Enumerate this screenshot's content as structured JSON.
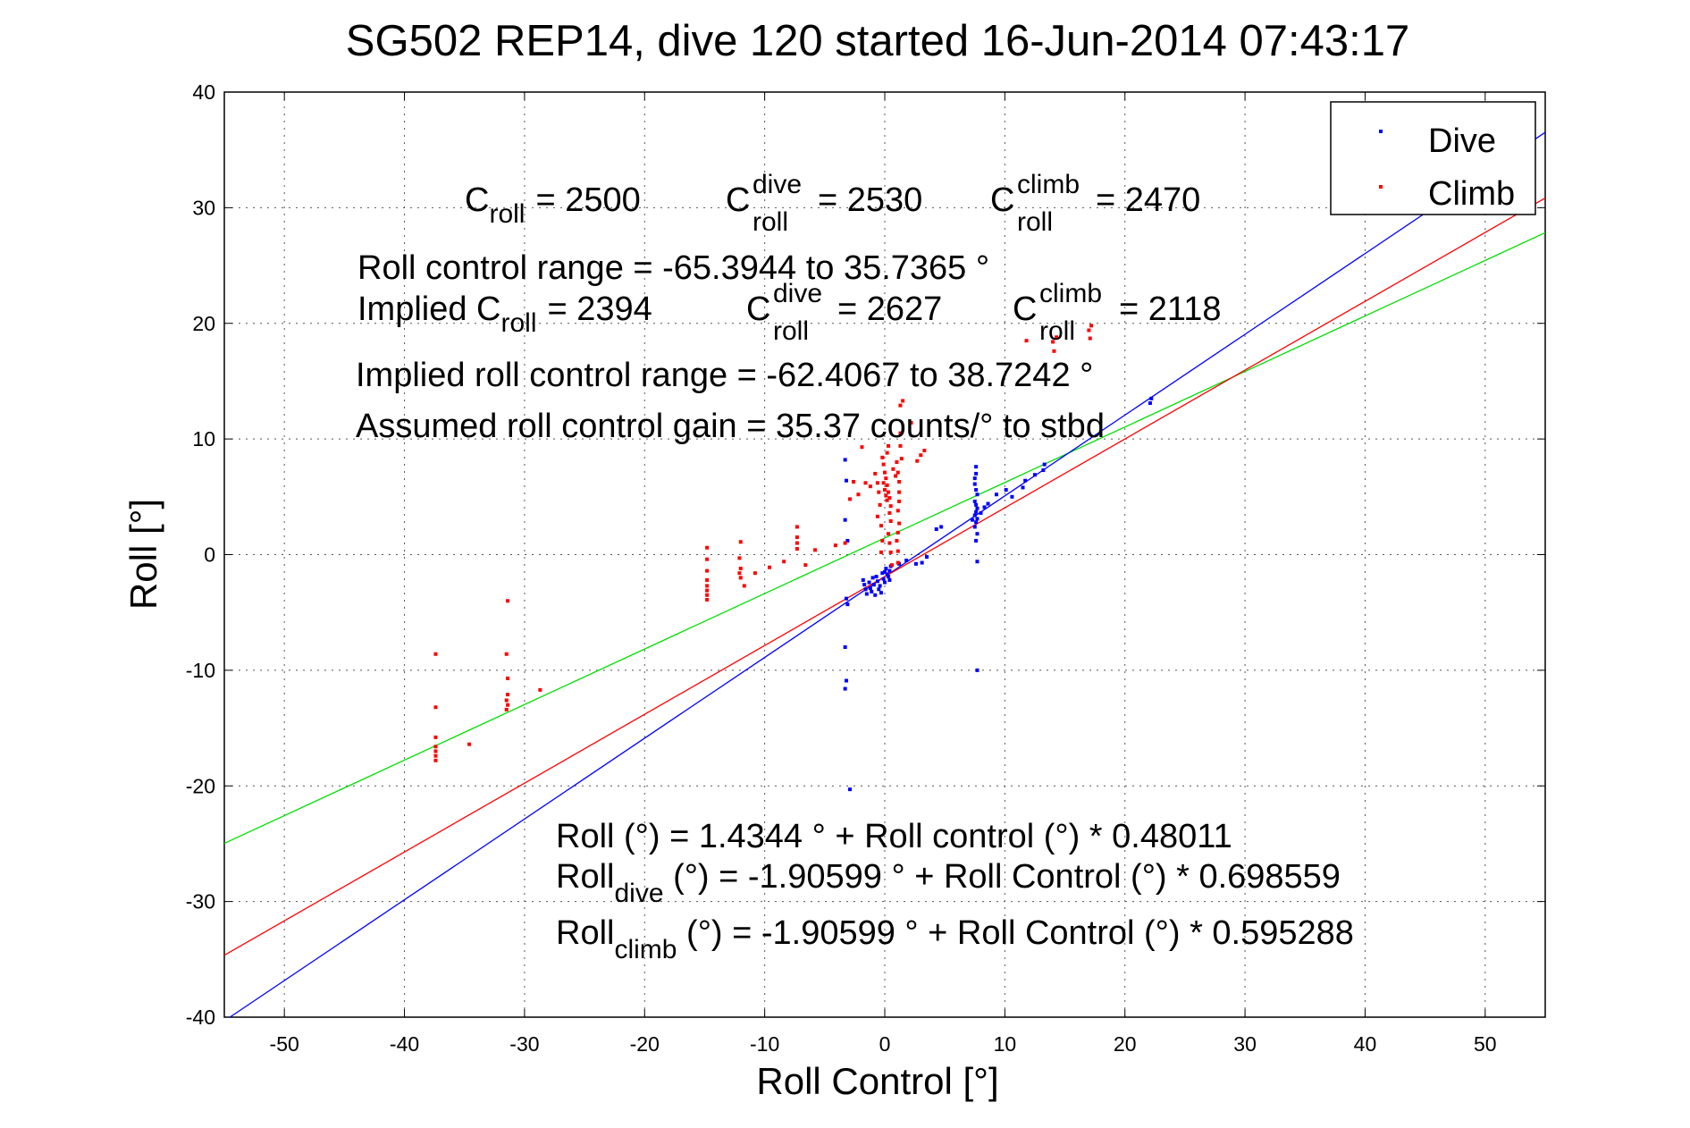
{
  "chart_data": {
    "type": "scatter",
    "title": "SG502 REP14, dive 120 started 16-Jun-2014 07:43:17",
    "xlabel": "Roll Control [°]",
    "ylabel": "Roll [°]",
    "xlim": [
      -55,
      55
    ],
    "ylim": [
      -40,
      40
    ],
    "xticks": [
      -50,
      -40,
      -30,
      -20,
      -10,
      0,
      10,
      20,
      30,
      40,
      50
    ],
    "yticks": [
      -40,
      -30,
      -20,
      -10,
      0,
      10,
      20,
      30,
      40
    ],
    "grid": true,
    "legend_position": "top-right",
    "legend": [
      {
        "label": "Dive",
        "color": "#0000ff"
      },
      {
        "label": "Climb",
        "color": "#ff0000"
      }
    ],
    "colors": {
      "dive": "#0000ff",
      "climb": "#ff0000",
      "overall_fit": "#00dd00"
    },
    "annotations": {
      "c_roll": {
        "label": "C",
        "sub": "roll",
        "value": "= 2500"
      },
      "c_dive": {
        "label": "C",
        "sub": "roll",
        "sup": "dive",
        "value": "= 2530"
      },
      "c_climb": {
        "label": "C",
        "sub": "roll",
        "sup": "climb",
        "value": "= 2470"
      },
      "range": "Roll control range = -65.3944 to 35.7365 °",
      "implied_prefix": "Implied C",
      "implied_sub": "roll",
      "implied_value": "= 2394",
      "implied_dive": {
        "label": "C",
        "sub": "roll",
        "sup": "dive",
        "value": "= 2627"
      },
      "implied_climb": {
        "label": "C",
        "sub": "roll",
        "sup": "climb",
        "value": "= 2118"
      },
      "implied_range": "Implied roll control range = -62.4067 to 38.7242 °",
      "gain": "Assumed roll control gain = 35.37 counts/° to stbd",
      "eq1": "Roll (°) = 1.4344 ° + Roll control (°) * 0.48011",
      "eq2_label": "Roll",
      "eq2_sub": "dive",
      "eq2_rest": " (°) = -1.90599 ° + Roll Control (°) * 0.698559",
      "eq3_label": "Roll",
      "eq3_sub": "climb",
      "eq3_rest": " (°) = -1.90599 ° + Roll Control (°) * 0.595288"
    },
    "fits": [
      {
        "name": "overall",
        "color": "#00dd00",
        "intercept": 1.4344,
        "slope": 0.48011
      },
      {
        "name": "dive",
        "color": "#0000ff",
        "intercept": -1.90599,
        "slope": 0.698559
      },
      {
        "name": "climb",
        "color": "#ff0000",
        "intercept": -1.90599,
        "slope": 0.595288
      }
    ],
    "series": [
      {
        "name": "Dive",
        "color": "#0000ff",
        "points": [
          [
            -3.3,
            8.2
          ],
          [
            -3.2,
            6.4
          ],
          [
            -3.3,
            3.0
          ],
          [
            -3.1,
            1.2
          ],
          [
            -3.2,
            -3.8
          ],
          [
            -3.1,
            -4.3
          ],
          [
            -3.3,
            -8.0
          ],
          [
            -3.2,
            -10.9
          ],
          [
            -3.3,
            -11.6
          ],
          [
            -2.9,
            -20.3
          ],
          [
            -1.8,
            -2.2
          ],
          [
            -1.7,
            -2.6
          ],
          [
            -1.6,
            -3.0
          ],
          [
            -1.5,
            -3.4
          ],
          [
            -1.3,
            -2.4
          ],
          [
            -1.2,
            -2.9
          ],
          [
            -1.1,
            -3.2
          ],
          [
            -1.0,
            -2.0
          ],
          [
            -0.9,
            -2.6
          ],
          [
            -0.8,
            -3.5
          ],
          [
            -0.7,
            -1.9
          ],
          [
            -0.6,
            -2.3
          ],
          [
            -0.5,
            -3.0
          ],
          [
            -0.4,
            -2.7
          ],
          [
            -0.3,
            -3.3
          ],
          [
            -0.2,
            -1.6
          ],
          [
            -0.1,
            -2.1
          ],
          [
            0.0,
            -1.5
          ],
          [
            0.0,
            -2.4
          ],
          [
            0.1,
            -1.2
          ],
          [
            0.2,
            -1.7
          ],
          [
            0.3,
            -1.9
          ],
          [
            0.4,
            -1.4
          ],
          [
            0.5,
            -1.0
          ],
          [
            0.4,
            -2.2
          ],
          [
            1.2,
            -0.8
          ],
          [
            1.8,
            -0.5
          ],
          [
            2.6,
            -0.8
          ],
          [
            3.1,
            -0.7
          ],
          [
            3.5,
            -0.2
          ],
          [
            4.3,
            2.2
          ],
          [
            4.7,
            2.4
          ],
          [
            7.6,
            7.6
          ],
          [
            7.6,
            7.0
          ],
          [
            7.5,
            6.6
          ],
          [
            7.5,
            6.1
          ],
          [
            7.6,
            5.6
          ],
          [
            7.7,
            5.2
          ],
          [
            7.5,
            4.6
          ],
          [
            7.6,
            4.3
          ],
          [
            7.7,
            4.0
          ],
          [
            7.6,
            3.7
          ],
          [
            7.5,
            3.4
          ],
          [
            7.7,
            3.1
          ],
          [
            7.6,
            2.8
          ],
          [
            7.5,
            2.4
          ],
          [
            7.7,
            1.8
          ],
          [
            7.6,
            1.2
          ],
          [
            7.7,
            -0.6
          ],
          [
            7.7,
            -10.0
          ],
          [
            7.3,
            3.0
          ],
          [
            8.0,
            3.6
          ],
          [
            8.3,
            4.1
          ],
          [
            8.6,
            4.4
          ],
          [
            9.3,
            5.2
          ],
          [
            10.1,
            5.6
          ],
          [
            10.6,
            5.0
          ],
          [
            11.5,
            5.8
          ],
          [
            11.7,
            6.4
          ],
          [
            12.5,
            6.9
          ],
          [
            13.2,
            7.3
          ],
          [
            13.3,
            7.8
          ],
          [
            22.1,
            13.1
          ],
          [
            22.2,
            13.5
          ]
        ]
      },
      {
        "name": "Climb",
        "color": "#ff0000",
        "points": [
          [
            -37.4,
            -8.6
          ],
          [
            -37.4,
            -13.2
          ],
          [
            -37.4,
            -15.8
          ],
          [
            -37.4,
            -16.6
          ],
          [
            -37.4,
            -17.0
          ],
          [
            -37.4,
            -17.4
          ],
          [
            -37.4,
            -17.8
          ],
          [
            -34.6,
            -16.4
          ],
          [
            -31.4,
            -4.0
          ],
          [
            -31.5,
            -8.6
          ],
          [
            -31.4,
            -10.7
          ],
          [
            -31.4,
            -12.1
          ],
          [
            -31.5,
            -12.6
          ],
          [
            -31.4,
            -13.0
          ],
          [
            -31.5,
            -13.4
          ],
          [
            -28.7,
            -11.7
          ],
          [
            -14.8,
            0.6
          ],
          [
            -14.8,
            -0.4
          ],
          [
            -14.8,
            -1.4
          ],
          [
            -14.8,
            -2.2
          ],
          [
            -14.8,
            -2.7
          ],
          [
            -14.8,
            -3.1
          ],
          [
            -14.8,
            -3.5
          ],
          [
            -14.8,
            -3.9
          ],
          [
            -12.0,
            1.1
          ],
          [
            -12.1,
            -0.3
          ],
          [
            -12.0,
            -1.2
          ],
          [
            -12.1,
            -1.6
          ],
          [
            -12.0,
            -2.0
          ],
          [
            -11.7,
            -2.7
          ],
          [
            -10.8,
            -1.6
          ],
          [
            -9.6,
            -1.1
          ],
          [
            -8.4,
            -0.6
          ],
          [
            -7.3,
            2.4
          ],
          [
            -7.3,
            1.5
          ],
          [
            -7.3,
            1.0
          ],
          [
            -7.3,
            0.5
          ],
          [
            -6.6,
            -0.9
          ],
          [
            -5.8,
            0.4
          ],
          [
            -4.1,
            0.8
          ],
          [
            -3.3,
            1.0
          ],
          [
            -2.9,
            4.8
          ],
          [
            -2.6,
            6.3
          ],
          [
            -2.2,
            5.2
          ],
          [
            -1.9,
            9.3
          ],
          [
            -1.6,
            6.2
          ],
          [
            -1.2,
            5.9
          ],
          [
            -0.8,
            7.0
          ],
          [
            -0.6,
            6.2
          ],
          [
            -0.5,
            5.4
          ],
          [
            -0.4,
            4.3
          ],
          [
            -0.6,
            3.3
          ],
          [
            -0.3,
            2.5
          ],
          [
            -0.2,
            1.2
          ],
          [
            -0.3,
            0.2
          ],
          [
            -0.2,
            8.4
          ],
          [
            -0.1,
            7.8
          ],
          [
            0.0,
            7.1
          ],
          [
            0.1,
            6.6
          ],
          [
            0.2,
            6.0
          ],
          [
            0.3,
            5.4
          ],
          [
            0.4,
            4.9
          ],
          [
            0.5,
            4.2
          ],
          [
            0.2,
            8.8
          ],
          [
            0.3,
            9.4
          ],
          [
            -0.1,
            6.2
          ],
          [
            0.0,
            5.6
          ],
          [
            0.1,
            5.1
          ],
          [
            0.2,
            4.7
          ],
          [
            0.4,
            3.6
          ],
          [
            0.5,
            2.9
          ],
          [
            0.3,
            1.8
          ],
          [
            0.4,
            1.0
          ],
          [
            0.5,
            0.2
          ],
          [
            0.6,
            -0.9
          ],
          [
            0.7,
            7.4
          ],
          [
            0.9,
            6.8
          ],
          [
            1.0,
            8.0
          ],
          [
            1.1,
            7.1
          ],
          [
            1.2,
            6.3
          ],
          [
            1.2,
            5.4
          ],
          [
            1.2,
            4.6
          ],
          [
            1.1,
            3.8
          ],
          [
            1.2,
            2.7
          ],
          [
            1.1,
            1.9
          ],
          [
            1.0,
            1.2
          ],
          [
            1.1,
            0.3
          ],
          [
            1.1,
            -0.7
          ],
          [
            1.3,
            9.4
          ],
          [
            1.4,
            8.3
          ],
          [
            1.3,
            10.5
          ],
          [
            1.3,
            12.9
          ],
          [
            1.5,
            13.3
          ],
          [
            2.2,
            11.4
          ],
          [
            2.7,
            8.1
          ],
          [
            3.0,
            8.6
          ],
          [
            3.3,
            9.0
          ],
          [
            11.8,
            18.5
          ],
          [
            14.0,
            18.4
          ],
          [
            14.1,
            17.6
          ],
          [
            14.3,
            18.8
          ],
          [
            17.0,
            19.4
          ],
          [
            17.1,
            18.7
          ],
          [
            17.2,
            19.8
          ]
        ]
      }
    ]
  }
}
